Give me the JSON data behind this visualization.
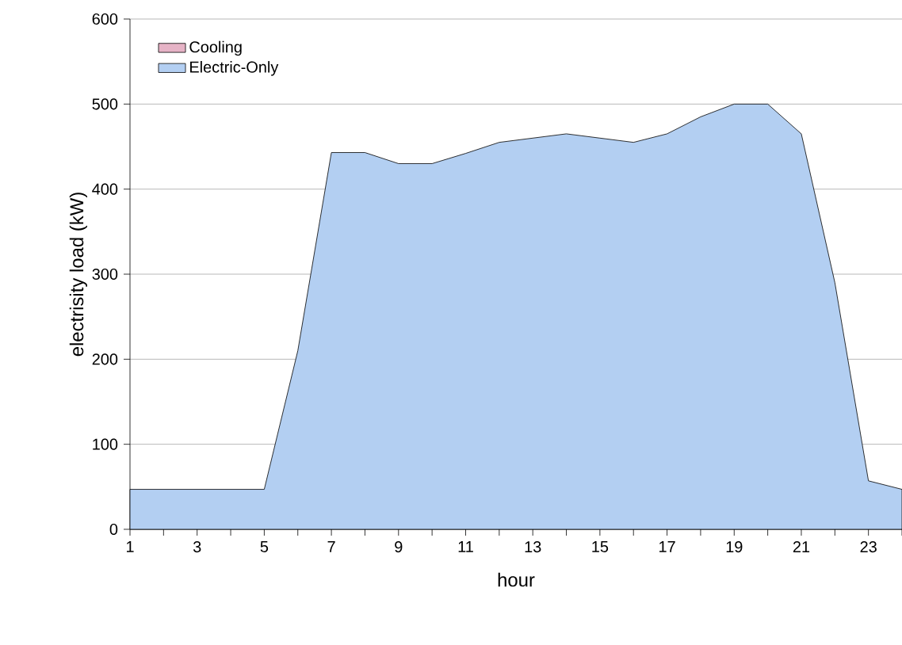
{
  "chart_data": {
    "type": "area",
    "xlabel": "hour",
    "ylabel": "electrisity load (kW)",
    "x": [
      1,
      2,
      3,
      4,
      5,
      6,
      7,
      8,
      9,
      10,
      11,
      12,
      13,
      14,
      15,
      16,
      17,
      18,
      19,
      20,
      21,
      22,
      23,
      24
    ],
    "series": [
      {
        "name": "Electric-Only",
        "color": "#b3cff2",
        "values": [
          47,
          47,
          47,
          47,
          47,
          210,
          443,
          443,
          430,
          430,
          442,
          455,
          460,
          465,
          460,
          455,
          465,
          485,
          500,
          500,
          465,
          290,
          57,
          47
        ]
      },
      {
        "name": "Cooling",
        "color": "#e6b3c6",
        "values": [
          null,
          null,
          null,
          null,
          null,
          null,
          null,
          null,
          null,
          null,
          null,
          null,
          null,
          null,
          null,
          null,
          null,
          null,
          null,
          null,
          null,
          null,
          null,
          null
        ]
      }
    ],
    "xlim": [
      1,
      24
    ],
    "xticks": [
      1,
      {
        "value": 2,
        "label": null
      },
      3,
      {
        "value": 4,
        "label": null
      },
      5,
      {
        "value": 6,
        "label": null
      },
      7,
      {
        "value": 8,
        "label": null
      },
      9,
      {
        "value": 10,
        "label": null
      },
      11,
      {
        "value": 12,
        "label": null
      },
      13,
      {
        "value": 14,
        "label": null
      },
      15,
      {
        "value": 16,
        "label": null
      },
      17,
      {
        "value": 18,
        "label": null
      },
      19,
      {
        "value": 20,
        "label": null
      },
      21,
      {
        "value": 22,
        "label": null
      },
      23,
      {
        "value": 24,
        "label": null
      }
    ],
    "ylim": [
      0,
      600
    ],
    "yticks": [
      0,
      100,
      200,
      300,
      400,
      500,
      600
    ],
    "grid": "y",
    "legend": "top left"
  }
}
